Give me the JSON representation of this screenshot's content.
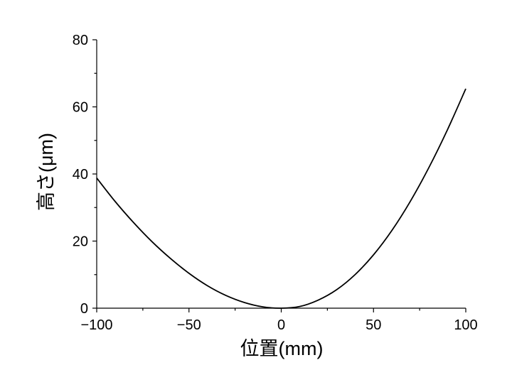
{
  "chart_data": {
    "type": "line",
    "title": "",
    "xlabel": "位置(mm)",
    "ylabel": "高さ(μm)",
    "xlim": [
      -100,
      100
    ],
    "ylim": [
      0,
      80
    ],
    "x_ticks": [
      -100,
      -50,
      0,
      50,
      100
    ],
    "x_tick_labels": [
      "−100",
      "−50",
      "0",
      "50",
      "100"
    ],
    "x_minor_ticks": [
      -75,
      -25,
      25,
      75
    ],
    "y_ticks": [
      0,
      20,
      40,
      60,
      80
    ],
    "y_tick_labels": [
      "0",
      "20",
      "40",
      "60",
      "80"
    ],
    "y_minor_ticks": [
      10,
      30,
      50,
      70
    ],
    "grid": false,
    "legend": "none",
    "series": [
      {
        "color": "#000000",
        "x": [
          -100,
          -90,
          -80,
          -70,
          -60,
          -50,
          -40,
          -30,
          -20,
          -10,
          0,
          10,
          20,
          30,
          40,
          50,
          60,
          70,
          80,
          90,
          100
        ],
        "y": [
          38.8,
          31.8,
          25.5,
          19.8,
          14.8,
          10.4,
          6.7,
          3.8,
          1.7,
          0.4,
          0,
          0.5,
          2.4,
          5.5,
          10.0,
          15.9,
          23.2,
          31.9,
          41.9,
          53.1,
          65.4
        ]
      }
    ]
  }
}
